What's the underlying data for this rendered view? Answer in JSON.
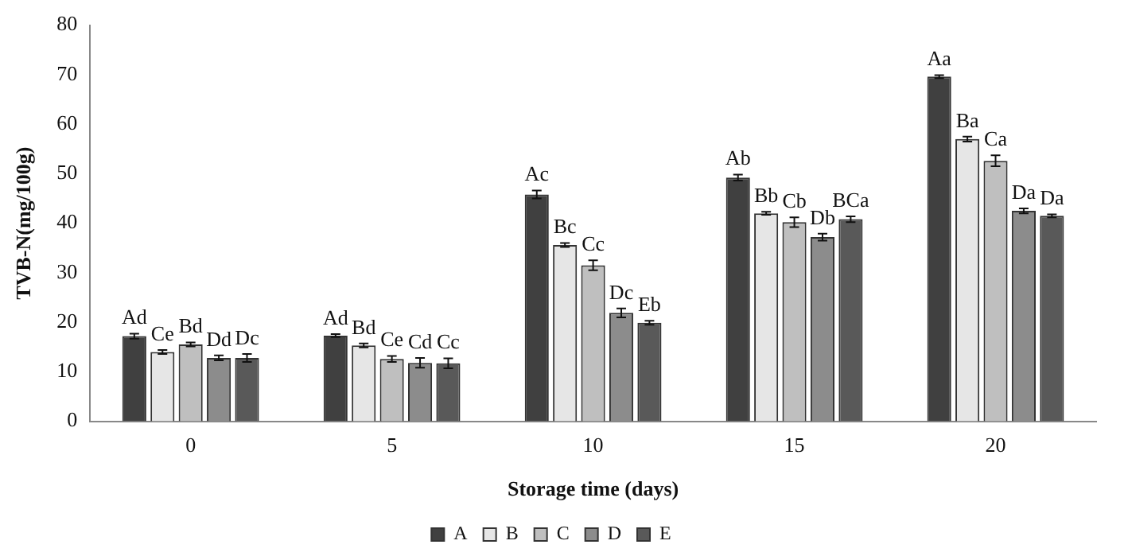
{
  "chart_data": {
    "type": "bar",
    "xlabel": "Storage time (days)",
    "ylabel": "TVB-N(mg/100g)",
    "categories": [
      "0",
      "5",
      "10",
      "15",
      "20"
    ],
    "ylim": [
      0,
      80
    ],
    "yticks": [
      0,
      10,
      20,
      30,
      40,
      50,
      60,
      70,
      80
    ],
    "grid": false,
    "legend": "bottom",
    "series": [
      {
        "name": "A",
        "color": "#404040",
        "values": [
          17.2,
          17.3,
          45.8,
          49.2,
          69.6
        ],
        "errors": [
          0.5,
          0.3,
          0.8,
          0.6,
          0.3
        ],
        "value_labels": [
          "Ad",
          "Ad",
          "Ac",
          "Ab",
          "Aa"
        ]
      },
      {
        "name": "B",
        "color": "#e6e6e6",
        "values": [
          14.0,
          15.3,
          35.6,
          42.0,
          57.0
        ],
        "errors": [
          0.4,
          0.4,
          0.4,
          0.3,
          0.5
        ],
        "value_labels": [
          "Ce",
          "Bd",
          "Bc",
          "Bb",
          "Ba"
        ]
      },
      {
        "name": "C",
        "color": "#bfbfbf",
        "values": [
          15.5,
          12.6,
          31.5,
          40.2,
          52.6
        ],
        "errors": [
          0.4,
          0.6,
          1.0,
          1.0,
          1.1
        ],
        "value_labels": [
          "Bd",
          "Ce",
          "Cc",
          "Cb",
          "Ca"
        ]
      },
      {
        "name": "D",
        "color": "#8c8c8c",
        "values": [
          12.8,
          11.8,
          21.9,
          37.2,
          42.5
        ],
        "errors": [
          0.5,
          1.0,
          0.9,
          0.7,
          0.5
        ],
        "value_labels": [
          "Dd",
          "Cd",
          "Dc",
          "Db",
          "Da"
        ]
      },
      {
        "name": "E",
        "color": "#595959",
        "values": [
          12.8,
          11.7,
          19.9,
          40.8,
          41.5
        ],
        "errors": [
          0.8,
          1.0,
          0.4,
          0.6,
          0.3
        ],
        "value_labels": [
          "Dc",
          "Cc",
          "Eb",
          "BCa",
          "Da"
        ]
      }
    ]
  }
}
